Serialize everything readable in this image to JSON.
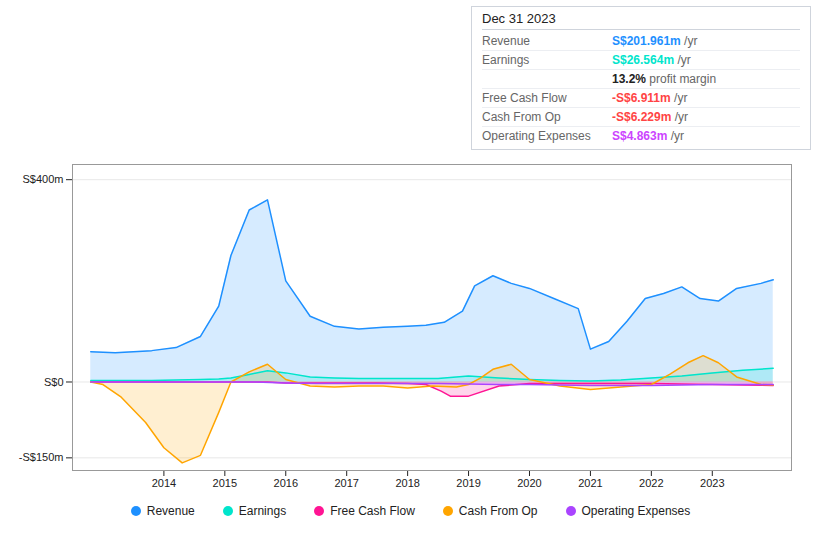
{
  "chart_data": {
    "type": "area",
    "title": "Dec 31 2023",
    "xlim": [
      2012.5,
      2024.3
    ],
    "xticks": [
      2014,
      2015,
      2016,
      2017,
      2018,
      2019,
      2020,
      2021,
      2022,
      2023
    ],
    "ylim": [
      -175,
      430
    ],
    "yticks": [
      {
        "value": -150,
        "label": "-S$150m"
      },
      {
        "value": 0,
        "label": "S$0"
      },
      {
        "value": 400,
        "label": "S$400m"
      }
    ],
    "grid": true,
    "legend": "bottom",
    "series": [
      {
        "name": "Revenue",
        "color": "#1e90ff",
        "x": [
          2012.8,
          2013.2,
          2013.8,
          2014.2,
          2014.6,
          2014.9,
          2015.1,
          2015.4,
          2015.7,
          2016.0,
          2016.4,
          2016.8,
          2017.2,
          2017.6,
          2018.0,
          2018.3,
          2018.6,
          2018.9,
          2019.1,
          2019.4,
          2019.7,
          2020.0,
          2020.4,
          2020.8,
          2021.0,
          2021.3,
          2021.6,
          2021.9,
          2022.2,
          2022.5,
          2022.8,
          2023.1,
          2023.4,
          2023.8,
          2024.0
        ],
        "values": [
          60,
          58,
          62,
          68,
          90,
          150,
          250,
          340,
          360,
          200,
          130,
          110,
          105,
          108,
          110,
          112,
          118,
          140,
          190,
          210,
          195,
          185,
          165,
          145,
          65,
          80,
          120,
          165,
          175,
          188,
          165,
          160,
          185,
          195,
          202
        ]
      },
      {
        "name": "Earnings",
        "color": "#00e5cc",
        "x": [
          2012.8,
          2013.2,
          2013.8,
          2014.2,
          2014.6,
          2014.9,
          2015.1,
          2015.4,
          2015.7,
          2016.0,
          2016.4,
          2016.8,
          2017.2,
          2017.6,
          2018.0,
          2018.5,
          2019.0,
          2019.5,
          2020.0,
          2020.5,
          2021.0,
          2021.5,
          2022.0,
          2022.5,
          2023.0,
          2023.5,
          2024.0
        ],
        "values": [
          3,
          3,
          3,
          4,
          5,
          6,
          8,
          15,
          22,
          18,
          10,
          8,
          7,
          7,
          7,
          7,
          12,
          8,
          5,
          3,
          2,
          4,
          8,
          12,
          18,
          23,
          27
        ]
      },
      {
        "name": "Free Cash Flow",
        "color": "#ff1493",
        "x": [
          2012.8,
          2013.2,
          2013.8,
          2014.2,
          2014.6,
          2014.9,
          2015.1,
          2015.4,
          2015.7,
          2016.0,
          2016.5,
          2017.0,
          2017.5,
          2018.0,
          2018.3,
          2018.55,
          2018.7,
          2019.0,
          2019.5,
          2020.0,
          2020.5,
          2021.0,
          2021.5,
          2022.0,
          2022.5,
          2023.0,
          2023.5,
          2024.0
        ],
        "values": [
          0,
          0,
          0,
          0,
          0,
          0,
          0,
          0,
          0,
          -2,
          -2,
          -2,
          -2,
          -3,
          -5,
          -18,
          -28,
          -28,
          -8,
          -3,
          -3,
          -3,
          -3,
          -3,
          -4,
          -5,
          -6,
          -7
        ]
      },
      {
        "name": "Cash From Op",
        "color": "#ffa500",
        "x": [
          2012.8,
          2013.0,
          2013.3,
          2013.7,
          2014.0,
          2014.3,
          2014.6,
          2014.9,
          2015.1,
          2015.4,
          2015.7,
          2016.0,
          2016.4,
          2016.8,
          2017.2,
          2017.6,
          2018.0,
          2018.4,
          2018.8,
          2019.0,
          2019.2,
          2019.4,
          2019.7,
          2020.0,
          2020.5,
          2021.0,
          2021.5,
          2022.0,
          2022.3,
          2022.6,
          2022.85,
          2023.1,
          2023.4,
          2023.8,
          2024.0
        ],
        "values": [
          0,
          -5,
          -30,
          -80,
          -130,
          -160,
          -145,
          -60,
          0,
          20,
          35,
          5,
          -8,
          -10,
          -8,
          -8,
          -12,
          -8,
          -10,
          -5,
          8,
          25,
          35,
          5,
          -8,
          -15,
          -10,
          -5,
          15,
          38,
          52,
          38,
          10,
          -5,
          -6
        ]
      },
      {
        "name": "Operating Expenses",
        "color": "#aa44ff",
        "x": [
          2012.8,
          2013.5,
          2014.0,
          2014.5,
          2015.0,
          2015.5,
          2016.0,
          2016.5,
          2017.0,
          2017.5,
          2018.0,
          2018.5,
          2019.0,
          2019.5,
          2020.0,
          2020.5,
          2021.0,
          2021.5,
          2022.0,
          2022.5,
          2023.0,
          2023.5,
          2024.0
        ],
        "values": [
          0,
          0,
          0,
          0,
          0,
          0,
          -2,
          -3,
          -3,
          -3,
          -3,
          -3,
          -4,
          -5,
          -5,
          -6,
          -7,
          -7,
          -7,
          -6,
          -5,
          -5,
          -5
        ]
      }
    ],
    "annotations": [
      {
        "label": "Revenue",
        "text": "S$201.961m",
        "suffix": " /yr",
        "color": "#1e90ff"
      },
      {
        "label": "Earnings",
        "text": "S$26.564m",
        "suffix": " /yr",
        "color": "#00e5cc"
      },
      {
        "text": "13.2%",
        "suffix": " profit margin"
      },
      {
        "label": "Free Cash Flow",
        "text": "-S$6.911m",
        "suffix": " /yr",
        "color": "#ff4444"
      },
      {
        "label": "Cash From Op",
        "text": "-S$6.229m",
        "suffix": " /yr",
        "color": "#ff4444"
      },
      {
        "label": "Operating Expenses",
        "text": "S$4.863m",
        "suffix": " /yr",
        "color": "#cc44ff"
      }
    ]
  }
}
